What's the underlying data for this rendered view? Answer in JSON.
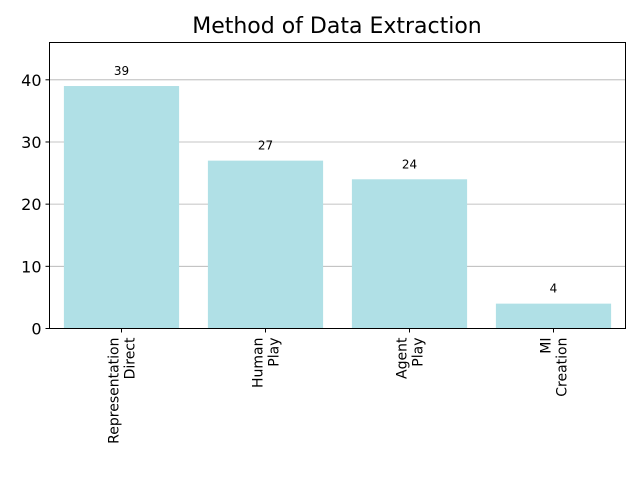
{
  "chart_data": {
    "type": "bar",
    "title": "Method of Data Extraction",
    "categories": [
      [
        "Representation",
        "Direct"
      ],
      [
        "Human",
        "Play"
      ],
      [
        "Agent",
        "Play"
      ],
      [
        "MI",
        "Creation"
      ]
    ],
    "values": [
      39,
      27,
      24,
      4
    ],
    "data_labels": [
      "39",
      "27",
      "24",
      "4"
    ],
    "ylim": [
      0,
      46
    ],
    "yticks": [
      0,
      10,
      20,
      30,
      40
    ],
    "xlabel": "",
    "ylabel": "",
    "grid": "y-major",
    "bar_color": "#b0e0e6",
    "legend": "none",
    "x_label_rotation": -90
  }
}
